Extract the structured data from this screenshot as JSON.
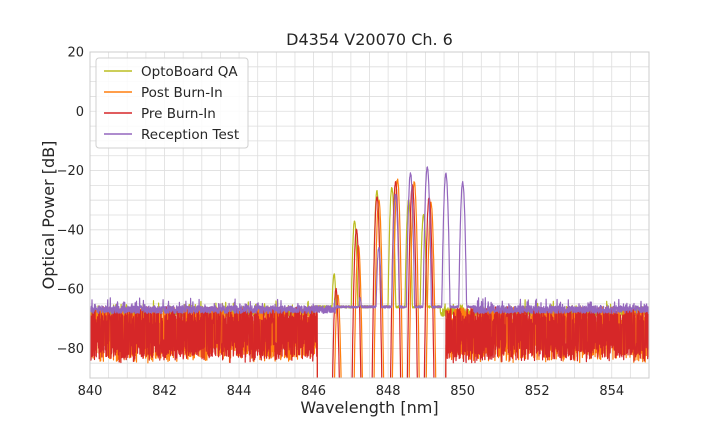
{
  "chart_data": {
    "type": "line",
    "title": "D4354 V20070 Ch. 6",
    "xlabel": "Wavelength [nm]",
    "ylabel": "Optical Power [dB]",
    "xlim": [
      840,
      855
    ],
    "ylim": [
      -90,
      20
    ],
    "x_ticks": [
      "840",
      "842",
      "844",
      "846",
      "848",
      "850",
      "852",
      "854"
    ],
    "y_ticks": [
      "20",
      "0",
      "−20",
      "−40",
      "−60",
      "−80"
    ],
    "grid": true,
    "legend_position": "top-left",
    "series": [
      {
        "name": "OptoBoard QA",
        "color": "#bcbd22",
        "noise_floor": -68,
        "noise_ranges": [
          [
            840,
            846.0
          ],
          [
            849.4,
            855
          ]
        ],
        "peaks": [
          {
            "x": 846.55,
            "y": -55
          },
          {
            "x": 847.1,
            "y": -37
          },
          {
            "x": 847.7,
            "y": -27
          },
          {
            "x": 848.1,
            "y": -26
          },
          {
            "x": 848.55,
            "y": -30
          },
          {
            "x": 848.95,
            "y": -35
          }
        ]
      },
      {
        "name": "Post Burn-In",
        "color": "#ff7f0e",
        "noise_floor": -72,
        "noise_ranges": [
          [
            840,
            846.1
          ],
          [
            849.55,
            855
          ]
        ],
        "peaks": [
          {
            "x": 846.65,
            "y": -62
          },
          {
            "x": 847.2,
            "y": -45
          },
          {
            "x": 847.75,
            "y": -30
          },
          {
            "x": 848.25,
            "y": -23
          },
          {
            "x": 848.7,
            "y": -24
          },
          {
            "x": 849.15,
            "y": -31
          }
        ]
      },
      {
        "name": "Pre Burn-In",
        "color": "#d62728",
        "noise_floor": -72,
        "noise_ranges": [
          [
            840,
            846.1
          ],
          [
            849.55,
            855
          ]
        ],
        "peaks": [
          {
            "x": 846.6,
            "y": -60
          },
          {
            "x": 847.15,
            "y": -40
          },
          {
            "x": 847.7,
            "y": -29
          },
          {
            "x": 848.2,
            "y": -24
          },
          {
            "x": 848.65,
            "y": -25
          },
          {
            "x": 849.1,
            "y": -29
          }
        ]
      },
      {
        "name": "Reception Test",
        "color": "#9467bd",
        "noise_floor": -67,
        "noise_ranges": [
          [
            840,
            846.6
          ],
          [
            850.3,
            855
          ]
        ],
        "peaks": [
          {
            "x": 847.25,
            "y": -63
          },
          {
            "x": 847.75,
            "y": -46
          },
          {
            "x": 848.2,
            "y": -28
          },
          {
            "x": 848.6,
            "y": -21
          },
          {
            "x": 849.05,
            "y": -19
          },
          {
            "x": 849.55,
            "y": -21
          },
          {
            "x": 850.0,
            "y": -24
          }
        ]
      }
    ]
  }
}
